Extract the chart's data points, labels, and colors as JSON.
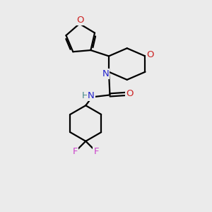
{
  "bg_color": "#ebebeb",
  "bond_color": "#000000",
  "N_color": "#2222cc",
  "O_color": "#cc2222",
  "F_color": "#cc44cc",
  "H_color": "#448888",
  "line_width": 1.6,
  "figsize": [
    3.0,
    3.0
  ],
  "dpi": 100,
  "xlim": [
    0,
    10
  ],
  "ylim": [
    0,
    10
  ]
}
